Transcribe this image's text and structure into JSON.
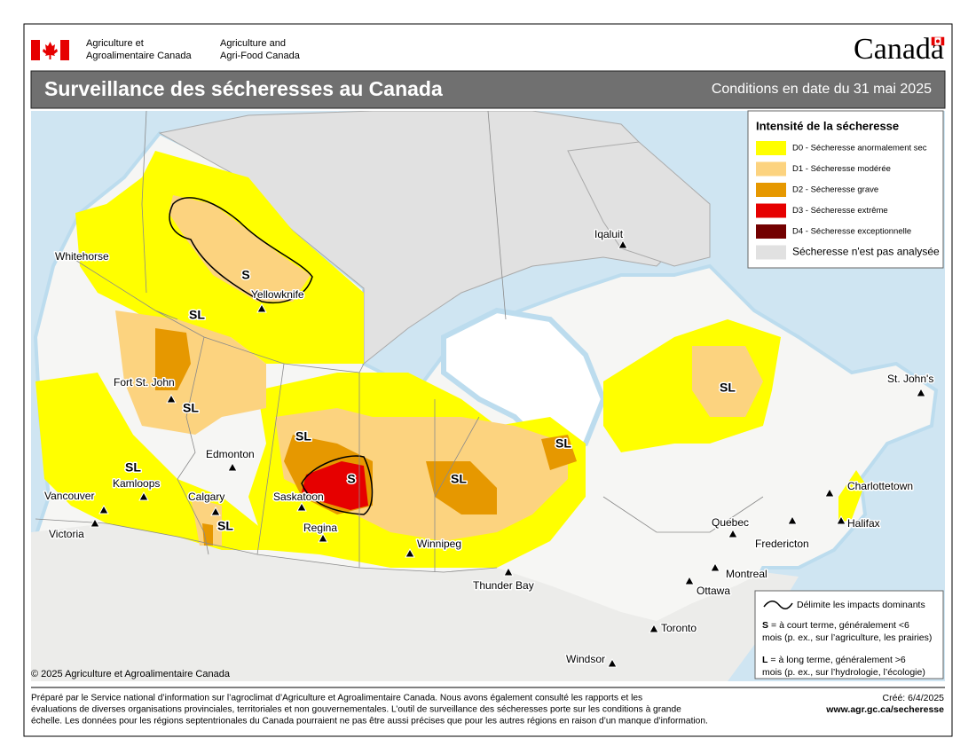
{
  "header": {
    "agency_fr": [
      "Agriculture et",
      "Agroalimentaire Canada"
    ],
    "agency_en": [
      "Agriculture and",
      "Agri-Food Canada"
    ],
    "wordmark": "Canada",
    "title": "Surveillance des sécheresses au Canada",
    "date": "Conditions en date du 31 mai 2025"
  },
  "legend": {
    "title": "Intensité de la sécheresse",
    "items": [
      {
        "label": "D0 - Sécheresse anormalement sec",
        "color": "#ffff00"
      },
      {
        "label": "D1 - Sécheresse modérée",
        "color": "#fcd37f"
      },
      {
        "label": "D2 - Sécheresse grave",
        "color": "#e69800"
      },
      {
        "label": "D3 - Sécheresse extrême",
        "color": "#e60000"
      },
      {
        "label": "D4 - Sécheresse exceptionnelle",
        "color": "#730000"
      },
      {
        "label": "Sécheresse n'est pas analysée",
        "color": "#e1e1e1"
      }
    ]
  },
  "impacts": {
    "line": "Délimite les impacts dominants",
    "s_key": "S",
    "s_lines": [
      "= à court terme, généralement <6",
      "mois (p. ex., sur l’agriculture, les prairies)"
    ],
    "l_key": "L",
    "l_lines": [
      "= à long terme, généralement >6",
      "mois (p. ex., sur l’hydrologie, l’écologie)"
    ]
  },
  "cities": [
    "Whitehorse",
    "Yellowknife",
    "Fort St. John",
    "Edmonton",
    "Kamloops",
    "Calgary",
    "Vancouver",
    "Victoria",
    "Saskatoon",
    "Regina",
    "Winnipeg",
    "Thunder Bay",
    "Iqaluit",
    "St. John's",
    "Charlottetown",
    "Halifax",
    "Fredericton",
    "Quebec",
    "Montreal",
    "Ottawa",
    "Toronto",
    "Windsor"
  ],
  "impact_labels": [
    "S",
    "SL",
    "SL",
    "SL",
    "S",
    "SL",
    "SL",
    "SL",
    "SL",
    "SL"
  ],
  "copyright": "© 2025 Agriculture et Agroalimentaire Canada",
  "footer": {
    "lines": [
      "Préparé par le Service national d’information sur l’agroclimat d’Agriculture et Agroalimentaire Canada. Nous avons également consulté les rapports et les",
      "évaluations de diverses organisations provinciales, territoriales et non gouvernementales. L’outil de surveillance des sécheresses porte sur les conditions à grande",
      "échelle. Les données pour les régions septentrionales du Canada pourraient ne pas être aussi précises que pour les autres régions en raison d’un manque d’information."
    ],
    "created": "Créé: 6/4/2025",
    "url": "www.agr.gc.ca/secheresse"
  }
}
